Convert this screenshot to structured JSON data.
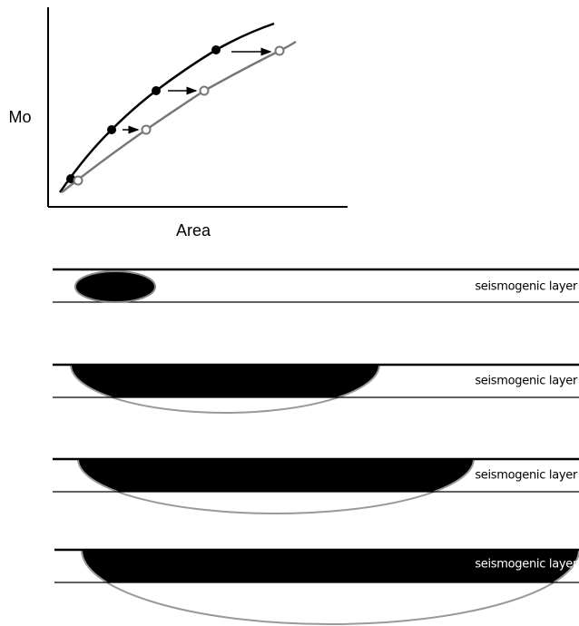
{
  "axes": {
    "y_label": "Mo",
    "x_label": "Area"
  },
  "panels": [
    {
      "label": "seismogenic layer"
    },
    {
      "label": "seismogenic layer"
    },
    {
      "label": "seismogenic layer"
    },
    {
      "label": "seismogenic layer"
    }
  ]
}
